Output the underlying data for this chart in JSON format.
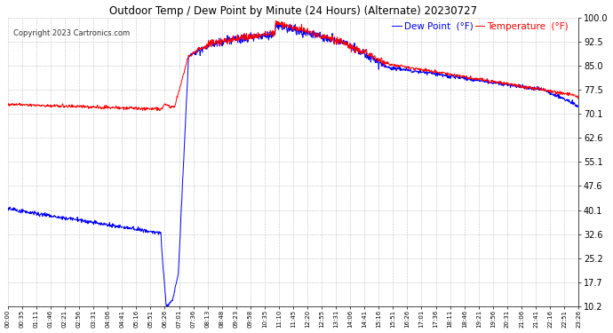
{
  "title": "Outdoor Temp / Dew Point by Minute (24 Hours) (Alternate) 20230727",
  "copyright": "Copyright 2023 Cartronics.com",
  "legend_dew": "Dew Point  (°F)",
  "legend_temp": "Temperature  (°F)",
  "dew_color": "blue",
  "temp_color": "red",
  "bg_color": "#ffffff",
  "plot_bg_color": "#ffffff",
  "grid_color": "#999999",
  "ylim_min": 10.2,
  "ylim_max": 100.0,
  "yticks": [
    10.2,
    17.7,
    25.2,
    32.6,
    40.1,
    47.6,
    55.1,
    62.6,
    70.1,
    77.5,
    85.0,
    92.5,
    100.0
  ],
  "total_minutes": 1440,
  "x_label_interval": 35,
  "x_tick_labels": [
    "00:00",
    "00:35",
    "01:11",
    "01:46",
    "02:21",
    "02:56",
    "03:31",
    "04:06",
    "04:41",
    "05:16",
    "05:51",
    "06:26",
    "07:01",
    "07:36",
    "08:13",
    "08:48",
    "09:23",
    "09:58",
    "10:35",
    "11:10",
    "11:45",
    "12:20",
    "12:55",
    "13:31",
    "14:06",
    "14:41",
    "15:16",
    "15:51",
    "16:26",
    "17:01",
    "17:36",
    "18:11",
    "18:46",
    "19:21",
    "19:56",
    "20:31",
    "21:06",
    "21:41",
    "22:16",
    "22:51",
    "23:26"
  ]
}
